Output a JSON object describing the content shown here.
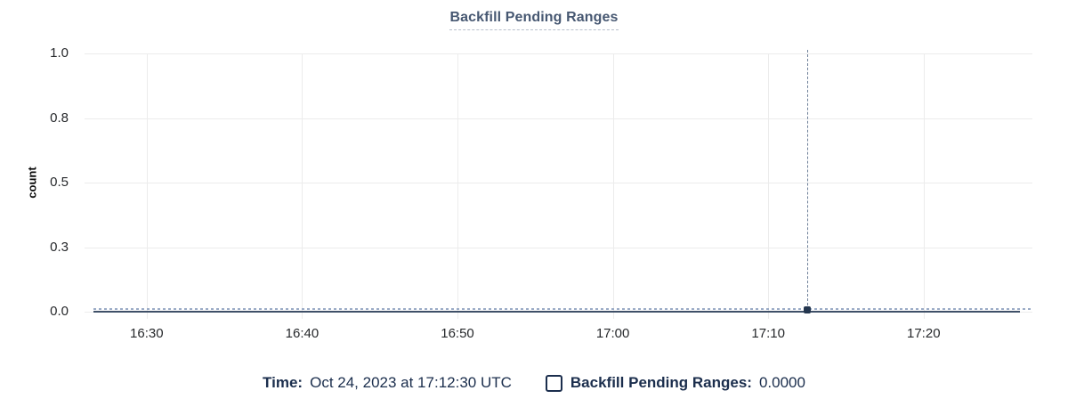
{
  "title": {
    "text": "Backfill Pending Ranges"
  },
  "chart_data": {
    "type": "line",
    "title": "Backfill Pending Ranges",
    "xlabel": "",
    "ylabel": "count",
    "x_domain": [
      "16:26",
      "17:27"
    ],
    "x_ticks": [
      "16:30",
      "16:40",
      "16:50",
      "17:00",
      "17:10",
      "17:20"
    ],
    "y_domain": [
      0,
      1
    ],
    "y_ticks": [
      {
        "value": 1.0,
        "label": "1.0"
      },
      {
        "value": 0.75,
        "label": "0.8"
      },
      {
        "value": 0.5,
        "label": "0.5"
      },
      {
        "value": 0.25,
        "label": "0.3"
      },
      {
        "value": 0.0,
        "label": "0.0"
      }
    ],
    "grid": true,
    "legend_position": "bottom",
    "series": [
      {
        "name": "Backfill Pending Ranges",
        "constant_value": 0,
        "points": [
          [
            "16:26",
            0
          ],
          [
            "17:12:30",
            0
          ],
          [
            "17:27",
            0
          ]
        ]
      }
    ],
    "crosshair": {
      "time": "17:12:30",
      "value": 0
    }
  },
  "legend": {
    "time_label": "Time:",
    "time_value": "Oct 24, 2023 at 17:12:30 UTC",
    "series_label": "Backfill Pending Ranges:",
    "series_value": "0.0000",
    "checkbox_checked": false
  },
  "colors": {
    "title": "#475872",
    "title_underline": "#b7bfcc",
    "tick_text": "#26282b",
    "grid": "#ececec",
    "crosshair": "#6f8099",
    "series_dotted": "#9aabc6",
    "zero_line": "#3f5068",
    "dot": "#24364f",
    "legend_text": "#1b2e4d",
    "bg": "#ffffff"
  }
}
